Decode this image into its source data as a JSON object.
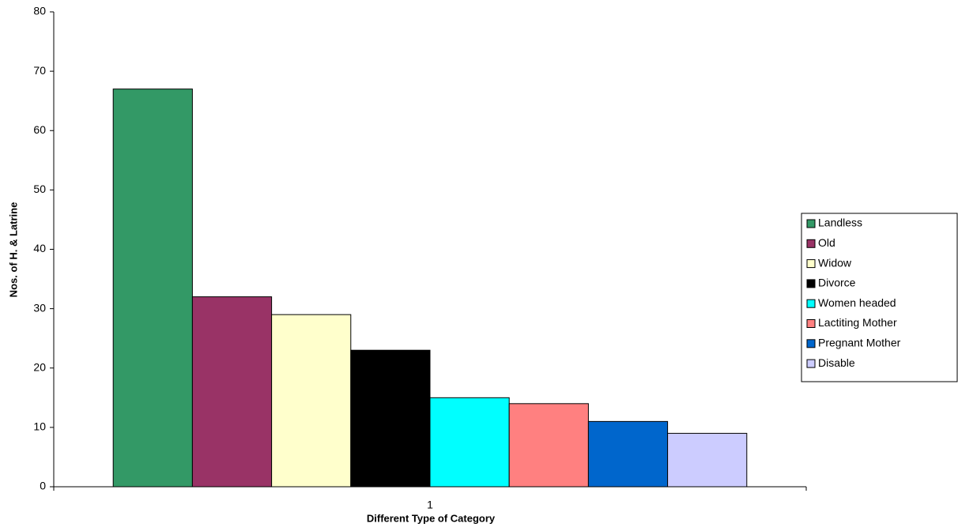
{
  "chart_data": {
    "type": "bar",
    "categories": [
      "1"
    ],
    "x_label": "Different Type of Category",
    "y_label": "Nos. of H. & Latrine",
    "series": [
      {
        "name": "Landless",
        "color": "#339966",
        "values": [
          67
        ]
      },
      {
        "name": "Old",
        "color": "#993366",
        "values": [
          32
        ]
      },
      {
        "name": "Widow",
        "color": "#FFFFCC",
        "values": [
          29
        ]
      },
      {
        "name": "Divorce",
        "color": "#000000",
        "values": [
          23
        ]
      },
      {
        "name": "Women headed",
        "color": "#00FFFF",
        "values": [
          15
        ]
      },
      {
        "name": "Lactiting Mother",
        "color": "#FF8080",
        "values": [
          14
        ]
      },
      {
        "name": "Pregnant Mother",
        "color": "#0066CC",
        "values": [
          11
        ]
      },
      {
        "name": "Disable",
        "color": "#CCCCFF",
        "values": [
          9
        ]
      }
    ],
    "ylim": [
      0,
      80
    ],
    "yticks": [
      0,
      10,
      20,
      30,
      40,
      50,
      60,
      70,
      80
    ],
    "grid": false,
    "legend": "right"
  }
}
